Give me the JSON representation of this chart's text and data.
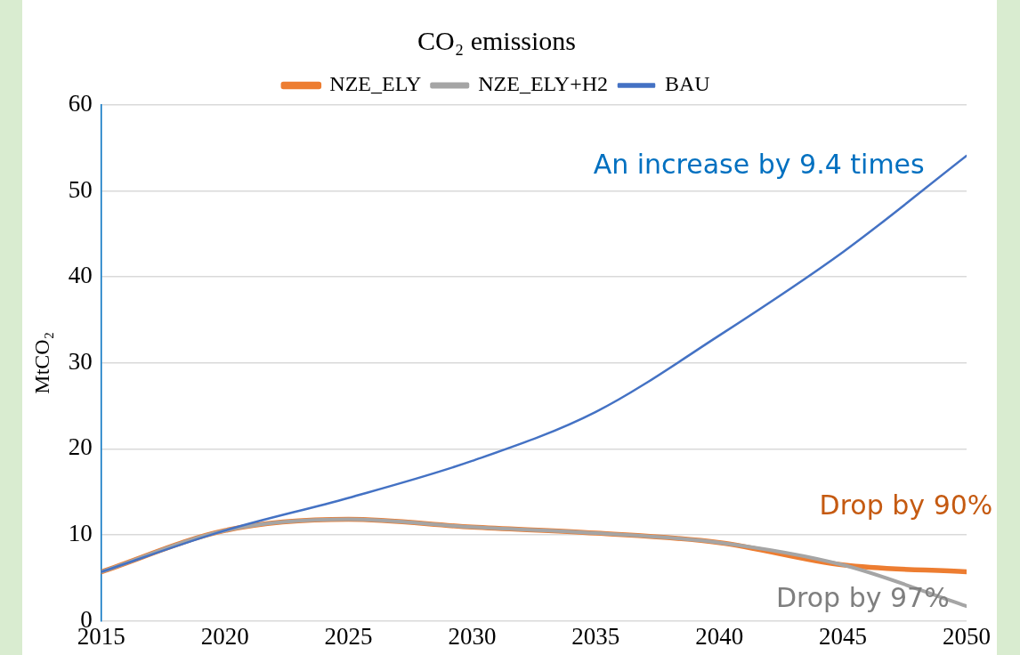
{
  "chart_data": {
    "type": "line",
    "title": "CO₂ emissions",
    "ylabel": "MtCO₂",
    "x": [
      2015,
      2020,
      2025,
      2030,
      2035,
      2040,
      2045,
      2050
    ],
    "series": [
      {
        "name": "NZE_ELY",
        "color": "#ed7d31",
        "values": [
          5.7,
          10.5,
          11.8,
          10.9,
          10.2,
          9.1,
          6.5,
          5.7
        ]
      },
      {
        "name": "NZE_ELY+H2",
        "color": "#a5a5a5",
        "values": [
          5.7,
          10.5,
          11.8,
          10.9,
          10.2,
          9.1,
          6.5,
          1.7
        ]
      },
      {
        "name": "BAU",
        "color": "#4472c4",
        "values": [
          5.7,
          10.5,
          14.3,
          18.6,
          24.3,
          33.2,
          42.9,
          54.1
        ]
      }
    ],
    "xlim": [
      2015,
      2050
    ],
    "xticks": [
      2015,
      2020,
      2025,
      2030,
      2035,
      2040,
      2045,
      2050
    ],
    "ylim": [
      0,
      60
    ],
    "yticks": [
      0,
      10,
      20,
      30,
      40,
      50,
      60
    ],
    "grid": "y",
    "legend": "top",
    "marker": "none",
    "line_style": "solid",
    "annotations": [
      "An increase by 9.4 times",
      "Drop by 90%",
      "Drop by 97%"
    ]
  }
}
